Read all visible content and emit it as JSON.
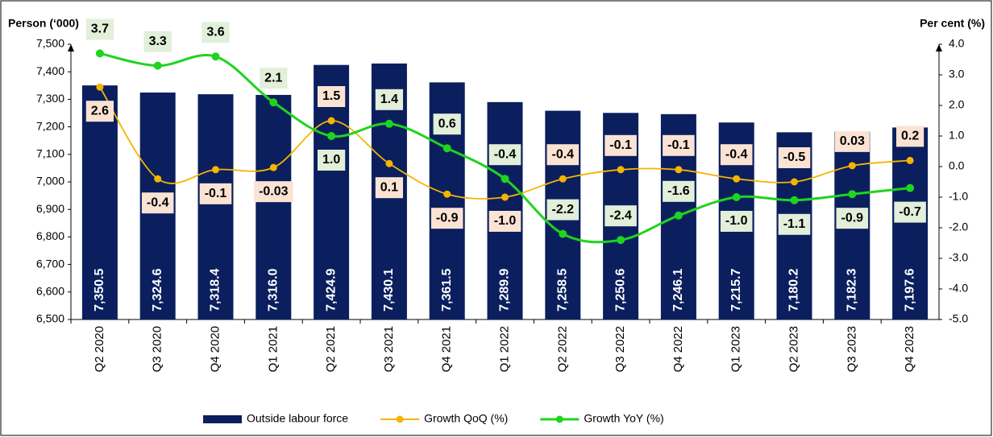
{
  "chart_data": {
    "type": "bar_line",
    "y_label": "Person (‘000)",
    "y2_label": "Per cent (%)",
    "categories": [
      "Q2 2020",
      "Q3 2020",
      "Q4 2020",
      "Q1 2021",
      "Q2 2021",
      "Q3 2021",
      "Q4 2021",
      "Q1 2022",
      "Q2 2022",
      "Q3 2022",
      "Q4 2022",
      "Q1 2023",
      "Q2 2023",
      "Q3 2023",
      "Q4 2023"
    ],
    "ylim": [
      6500,
      7500
    ],
    "yticks": [
      {
        "value": 6500,
        "label": "6,500"
      },
      {
        "value": 6600,
        "label": "6,600"
      },
      {
        "value": 6700,
        "label": "6,700"
      },
      {
        "value": 6800,
        "label": "6,800"
      },
      {
        "value": 6900,
        "label": "6,900"
      },
      {
        "value": 7000,
        "label": "7,000"
      },
      {
        "value": 7100,
        "label": "7,100"
      },
      {
        "value": 7200,
        "label": "7,200"
      },
      {
        "value": 7300,
        "label": "7,300"
      },
      {
        "value": 7400,
        "label": "7,400"
      },
      {
        "value": 7500,
        "label": "7,500"
      }
    ],
    "y2lim": [
      -5,
      4
    ],
    "y2ticks": [
      {
        "value": -5,
        "label": "-5.0"
      },
      {
        "value": -4,
        "label": "-4.0"
      },
      {
        "value": -3,
        "label": "-3.0"
      },
      {
        "value": -2,
        "label": "-2.0"
      },
      {
        "value": -1,
        "label": "-1.0"
      },
      {
        "value": 0,
        "label": "0.0"
      },
      {
        "value": 1,
        "label": "1.0"
      },
      {
        "value": 2,
        "label": "2.0"
      },
      {
        "value": 3,
        "label": "3.0"
      },
      {
        "value": 4,
        "label": "4.0"
      }
    ],
    "series": [
      {
        "name": "Outside labour force",
        "type": "bar",
        "color": "#0b1f5e",
        "values": [
          7350.5,
          7324.6,
          7318.4,
          7316.0,
          7424.9,
          7430.1,
          7361.5,
          7289.9,
          7258.5,
          7250.6,
          7246.1,
          7215.7,
          7180.2,
          7182.3,
          7197.6
        ],
        "value_labels": [
          "7,350.5",
          "7,324.6",
          "7,318.4",
          "7,316.0",
          "7,424.9",
          "7,430.1",
          "7,361.5",
          "7,289.9",
          "7,258.5",
          "7,250.6",
          "7,246.1",
          "7,215.7",
          "7,180.2",
          "7,182.3",
          "7,197.6"
        ]
      },
      {
        "name": "Growth QoQ (%)",
        "type": "line",
        "axis": "y2",
        "color": "#f5b400",
        "label_bg": "#fbe3d4",
        "values": [
          2.6,
          -0.4,
          -0.1,
          -0.03,
          1.5,
          0.1,
          -0.9,
          -1.0,
          -0.4,
          -0.1,
          -0.1,
          -0.4,
          -0.5,
          0.03,
          0.2
        ],
        "value_labels": [
          "2.6",
          "-0.4",
          "-0.1",
          "-0.03",
          "1.5",
          "0.1",
          "-0.9",
          "-1.0",
          "-0.4",
          "-0.1",
          "-0.1",
          "-0.4",
          "-0.5",
          "0.03",
          "0.2"
        ]
      },
      {
        "name": "Growth YoY (%)",
        "type": "line",
        "axis": "y2",
        "color": "#1ed41e",
        "label_bg": "#e2efd9",
        "values": [
          3.7,
          3.3,
          3.6,
          2.1,
          1.0,
          1.4,
          0.6,
          -0.4,
          -2.2,
          -2.4,
          -1.6,
          -1.0,
          -1.1,
          -0.9,
          -0.7
        ],
        "value_labels": [
          "3.7",
          "3.3",
          "3.6",
          "2.1",
          "1.0",
          "1.4",
          "0.6",
          "-0.4",
          "-2.2",
          "-2.4",
          "-1.6",
          "-1.0",
          "-1.1",
          "-0.9",
          "-0.7"
        ]
      }
    ]
  }
}
